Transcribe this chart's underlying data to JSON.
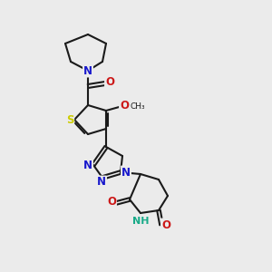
{
  "bg_color": "#ebebeb",
  "bond_color": "#1a1a1a",
  "bond_width": 1.5,
  "atom_colors": {
    "N": "#1818cc",
    "O": "#cc1818",
    "S": "#cccc00",
    "H": "#18aa88",
    "C": "#1a1a1a"
  },
  "font_size_atom": 8.5,
  "fig_size": [
    3.0,
    3.0
  ],
  "dpi": 100
}
